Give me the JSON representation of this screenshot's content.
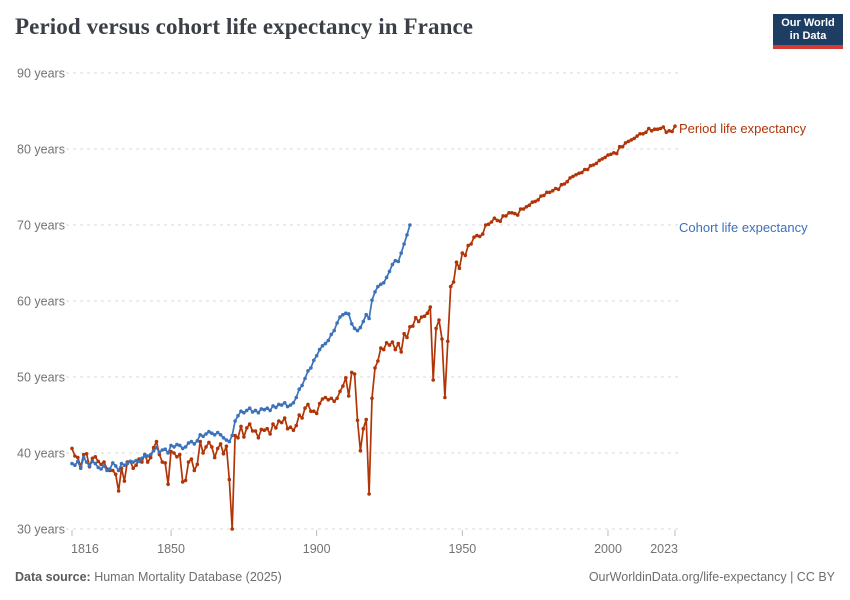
{
  "header": {
    "title": "Period versus cohort life expectancy in France"
  },
  "logo": {
    "line1": "Our World",
    "line2": "in Data",
    "bg_color": "#1d3d63",
    "bar_color": "#d73c34"
  },
  "footer": {
    "source_label": "Data source:",
    "source_text": " Human Mortality Database (2025)",
    "credit": "OurWorldinData.org/life-expectancy | CC BY"
  },
  "chart_data": {
    "type": "line",
    "title": "Period versus cohort life expectancy in France",
    "xlabel": "",
    "ylabel": "",
    "xlim": [
      1816,
      2023
    ],
    "ylim": [
      30,
      90
    ],
    "grid": "dashed-horizontal",
    "legend_position": "labels-at-line-ends-right",
    "x_ticks": [
      {
        "value": 1816,
        "label": "1816"
      },
      {
        "value": 1850,
        "label": "1850"
      },
      {
        "value": 1900,
        "label": "1900"
      },
      {
        "value": 1950,
        "label": "1950"
      },
      {
        "value": 2000,
        "label": "2000"
      },
      {
        "value": 2023,
        "label": "2023"
      }
    ],
    "y_ticks": [
      {
        "value": 30,
        "label": "30 years"
      },
      {
        "value": 40,
        "label": "40 years"
      },
      {
        "value": 50,
        "label": "50 years"
      },
      {
        "value": 60,
        "label": "60 years"
      },
      {
        "value": 70,
        "label": "70 years"
      },
      {
        "value": 80,
        "label": "80 years"
      },
      {
        "value": 90,
        "label": "90 years"
      }
    ],
    "series": [
      {
        "name": "Period life expectancy",
        "color": "#b13507",
        "start_year": 1816,
        "end_year": 2023,
        "step": 1,
        "values": [
          40.6,
          39.6,
          39.4,
          38.2,
          39.8,
          39.9,
          38.2,
          39.3,
          39.5,
          38.9,
          38.5,
          38.8,
          37.9,
          37.7,
          37.7,
          37.2,
          35.0,
          38.0,
          36.3,
          38.8,
          38.9,
          38.0,
          38.4,
          39.2,
          38.8,
          39.8,
          38.8,
          39.4,
          40.7,
          41.5,
          39.8,
          38.8,
          38.7,
          35.9,
          40.2,
          40.0,
          39.5,
          39.8,
          36.2,
          36.4,
          38.8,
          39.2,
          37.7,
          38.5,
          41.5,
          40.0,
          40.8,
          41.4,
          40.8,
          39.4,
          40.6,
          41.2,
          39.9,
          40.9,
          36.5,
          30.0,
          42.3,
          42.0,
          43.5,
          42.1,
          43.3,
          43.8,
          42.9,
          42.9,
          42.0,
          43.1,
          43.0,
          43.2,
          42.5,
          43.8,
          43.3,
          44.2,
          44.0,
          44.6,
          43.2,
          43.4,
          43.0,
          43.6,
          45.0,
          44.6,
          45.9,
          46.4,
          45.5,
          45.5,
          45.2,
          46.5,
          47.1,
          47.3,
          47.0,
          47.2,
          46.8,
          47.2,
          48.1,
          48.8,
          49.9,
          47.5,
          50.6,
          50.4,
          44.3,
          40.3,
          43.2,
          44.4,
          34.6,
          47.2,
          51.2,
          52.1,
          53.8,
          53.6,
          54.5,
          54.2,
          54.6,
          53.6,
          54.4,
          53.3,
          55.7,
          55.2,
          56.6,
          56.7,
          57.8,
          57.3,
          57.9,
          58.0,
          58.4,
          59.2,
          49.6,
          56.4,
          57.5,
          55.0,
          47.3,
          54.7,
          61.9,
          62.5,
          65.1,
          64.3,
          66.3,
          66.0,
          67.3,
          67.5,
          68.4,
          68.6,
          68.5,
          68.8,
          70.0,
          70.1,
          70.4,
          70.9,
          70.6,
          70.5,
          71.2,
          71.2,
          71.6,
          71.6,
          71.5,
          71.3,
          72.1,
          72.1,
          72.4,
          72.6,
          73.0,
          73.1,
          73.3,
          73.8,
          73.9,
          74.3,
          74.3,
          74.5,
          74.8,
          74.7,
          75.3,
          75.4,
          75.7,
          76.2,
          76.4,
          76.6,
          76.8,
          76.9,
          77.3,
          77.3,
          77.8,
          77.9,
          78.1,
          78.5,
          78.7,
          78.9,
          79.2,
          79.3,
          79.5,
          79.4,
          80.3,
          80.3,
          80.8,
          81.0,
          81.2,
          81.4,
          81.7,
          82.0,
          82.0,
          82.2,
          82.7,
          82.4,
          82.6,
          82.6,
          82.7,
          82.9,
          82.2,
          82.4,
          82.3,
          83.0
        ]
      },
      {
        "name": "Cohort life expectancy",
        "color": "#3b72ba",
        "start_year": 1816,
        "end_year": 1932,
        "step": 1,
        "values": [
          38.6,
          38.4,
          38.9,
          38.0,
          39.4,
          38.8,
          38.3,
          38.9,
          38.6,
          38.1,
          37.9,
          38.3,
          37.7,
          37.9,
          38.7,
          38.3,
          37.7,
          38.6,
          38.4,
          38.6,
          38.9,
          38.8,
          39.0,
          38.9,
          39.3,
          39.7,
          39.6,
          39.8,
          40.3,
          40.7,
          40.1,
          40.4,
          40.5,
          40.0,
          41.0,
          40.8,
          41.1,
          41.0,
          40.6,
          40.8,
          41.3,
          41.5,
          41.2,
          41.6,
          42.4,
          42.2,
          42.5,
          42.8,
          42.6,
          42.4,
          42.7,
          42.4,
          42.0,
          41.7,
          41.5,
          42.3,
          44.2,
          44.9,
          45.5,
          45.3,
          45.6,
          45.9,
          45.4,
          45.6,
          45.3,
          45.8,
          45.7,
          45.9,
          45.6,
          46.2,
          46.0,
          46.4,
          46.3,
          46.6,
          46.1,
          46.3,
          46.6,
          47.3,
          48.4,
          48.9,
          49.8,
          50.8,
          51.2,
          52.2,
          52.8,
          53.6,
          54.1,
          54.4,
          54.8,
          55.6,
          56.1,
          57.1,
          57.9,
          58.2,
          58.4,
          58.3,
          57.0,
          56.4,
          56.1,
          56.5,
          57.3,
          58.2,
          57.7,
          60.1,
          61.2,
          61.9,
          62.2,
          62.4,
          63.1,
          63.9,
          64.8,
          65.3,
          65.2,
          66.3,
          67.5,
          68.7,
          70.0
        ]
      }
    ]
  }
}
